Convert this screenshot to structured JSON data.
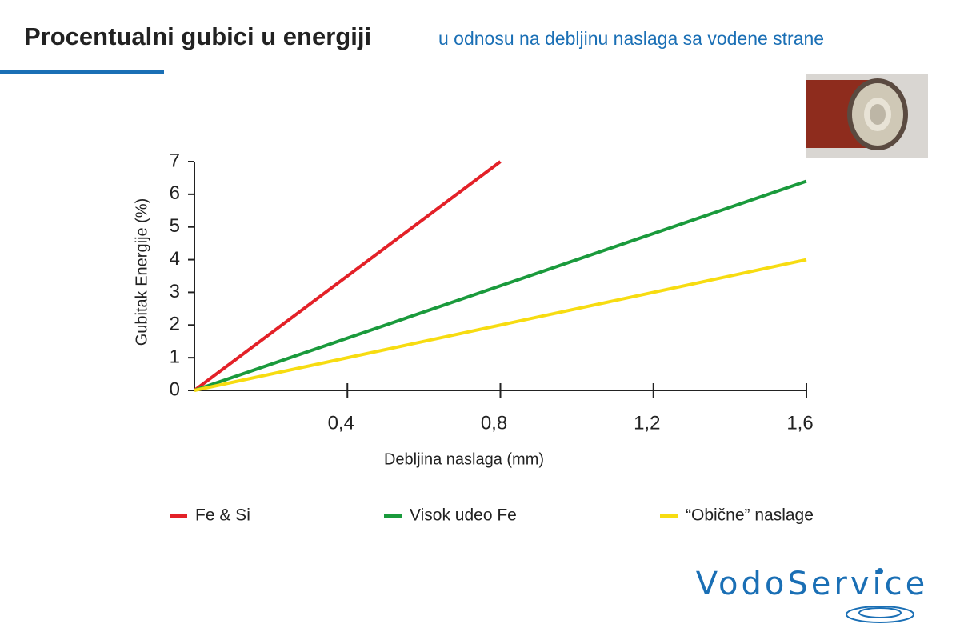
{
  "chart_data": {
    "type": "line",
    "title": "Procentualni gubici u energiji",
    "subtitle": "u odnosu na debljinu naslaga sa vodene strane",
    "x_label": "Debljina naslaga (mm)",
    "y_label": "Gubitak Energije (%)",
    "xlim": [
      0,
      1.6
    ],
    "ylim": [
      0,
      7
    ],
    "xticks": [
      {
        "value": 0.4,
        "label": "0,4"
      },
      {
        "value": 0.8,
        "label": "0,8"
      },
      {
        "value": 1.2,
        "label": "1,2"
      },
      {
        "value": 1.6,
        "label": "1,6"
      }
    ],
    "yticks": [
      0,
      1,
      2,
      3,
      4,
      5,
      6,
      7
    ],
    "grid": false,
    "legend": "bottom",
    "series": [
      {
        "name": "Fe & Si",
        "color": "#e32128",
        "x": [
          0,
          0.8
        ],
        "values": [
          0,
          7
        ]
      },
      {
        "name": "Visok udeo Fe",
        "color": "#1a9a3c",
        "x": [
          0,
          1.6
        ],
        "values": [
          0,
          6.4
        ]
      },
      {
        "name": "“Obične” naslage",
        "color": "#f7dc11",
        "x": [
          0,
          1.6
        ],
        "values": [
          0,
          4
        ]
      }
    ],
    "logo": "VodoService"
  }
}
